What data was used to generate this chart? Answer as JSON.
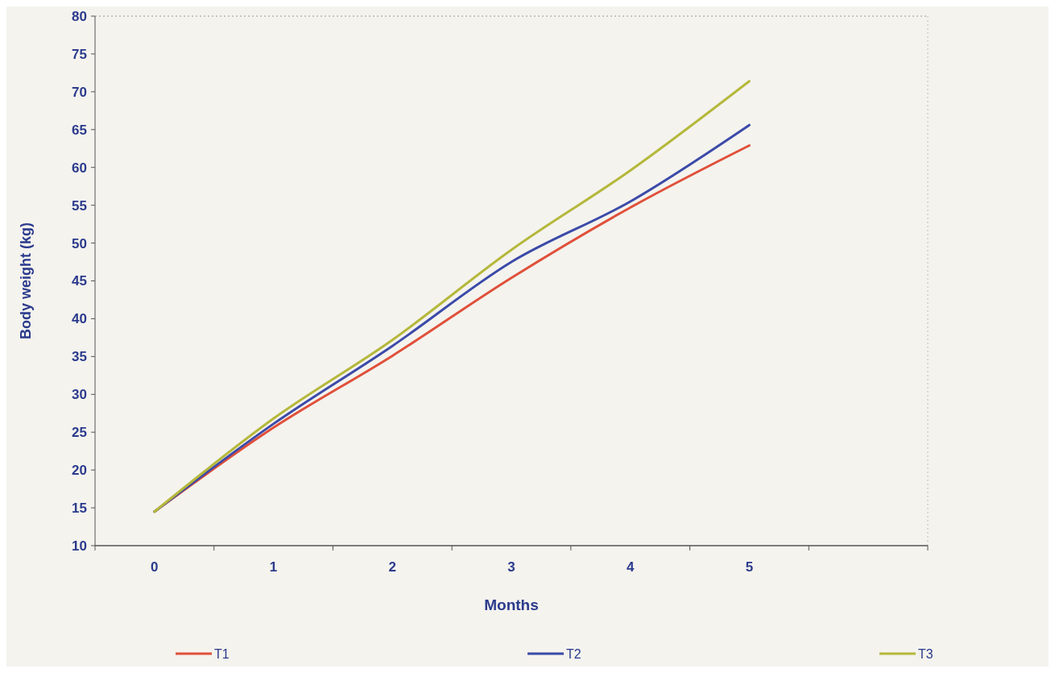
{
  "chart_data": {
    "type": "line",
    "xlabel": "Months",
    "ylabel": "Body weight (kg)",
    "categories": [
      "0",
      "1",
      "2",
      "3",
      "4",
      "5"
    ],
    "ylim": [
      10,
      80
    ],
    "yticks": [
      10,
      15,
      20,
      25,
      30,
      35,
      40,
      45,
      50,
      55,
      60,
      65,
      70,
      75,
      80
    ],
    "legend": "bottom",
    "marker": "none",
    "line_style": "solid",
    "series": [
      {
        "name": "T1",
        "color": "#e0503a",
        "values": [
          14.5,
          25.6,
          35.1,
          45.4,
          54.7,
          62.9
        ]
      },
      {
        "name": "T2",
        "color": "#3b4aa8",
        "values": [
          14.5,
          26.1,
          36.4,
          47.5,
          55.5,
          65.6
        ]
      },
      {
        "name": "T3",
        "color": "#b5b83a",
        "values": [
          14.5,
          26.8,
          37.2,
          49.1,
          59.6,
          71.4
        ]
      }
    ]
  }
}
